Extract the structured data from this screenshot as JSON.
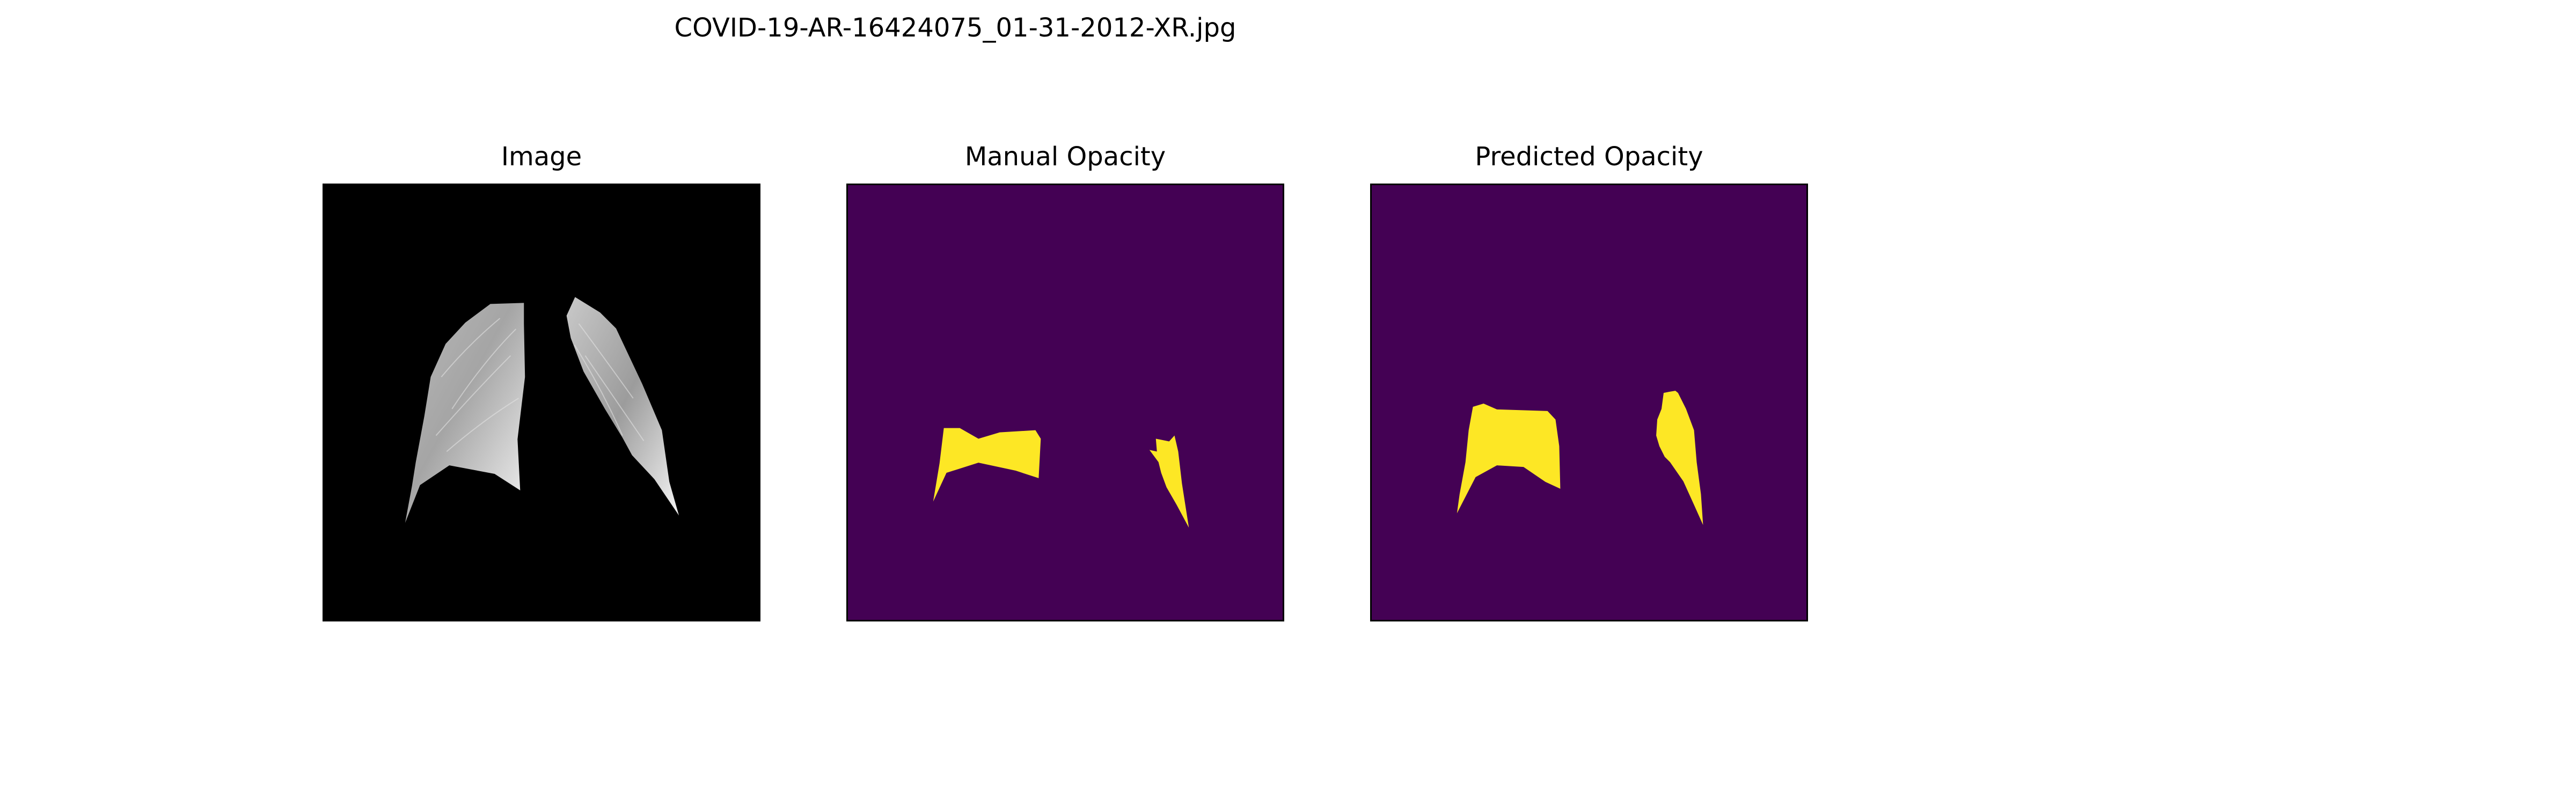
{
  "figure": {
    "title": "COVID-19-AR-16424075_01-31-2012-XR.jpg"
  },
  "panels": [
    {
      "title": "Image",
      "content": "masked chest X-ray lung fields, grayscale on black"
    },
    {
      "title": "Manual Opacity",
      "content": "binary mask, yellow opacity regions on purple"
    },
    {
      "title": "Predicted Opacity",
      "content": "binary mask, yellow opacity regions on purple"
    }
  ],
  "colors": {
    "background": "#ffffff",
    "xray_background": "#000000",
    "mask_background": "#440154",
    "mask_foreground": "#fde725",
    "frame": "#000000"
  }
}
